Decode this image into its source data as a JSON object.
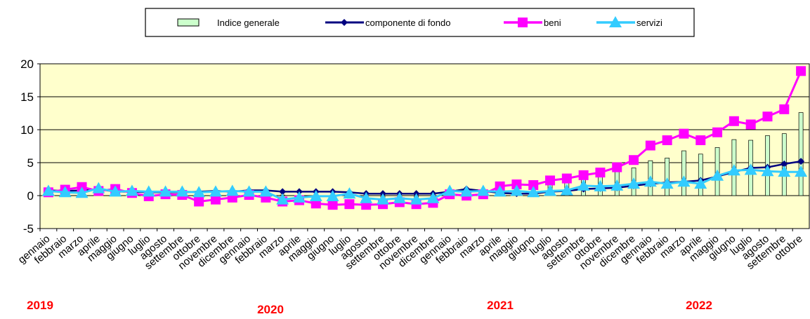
{
  "chart_data": {
    "type": "bar",
    "legend": {
      "placement": "top",
      "entries": [
        {
          "key": "indice",
          "label": "Indice generale"
        },
        {
          "key": "fondo",
          "label": "componente  di fondo"
        },
        {
          "key": "beni",
          "label": "beni"
        },
        {
          "key": "servizi",
          "label": "servizi"
        }
      ]
    },
    "colors": {
      "plot_bg": "#ffffcc",
      "bar_fill": "#ccffcc",
      "fondo": "#000080",
      "beni": "#ff00ff",
      "servizi": "#33ccff",
      "year_label": "#ff0000"
    },
    "ylim": [
      -5,
      20
    ],
    "yticks": [
      "-5",
      "0",
      "5",
      "10",
      "15",
      "20"
    ],
    "categories": [
      "gennaio",
      "febbraio",
      "marzo",
      "aprile",
      "maggio",
      "giugno",
      "luglio",
      "agosto",
      "settembre",
      "ottobre",
      "novembre",
      "dicembre",
      "gennaio",
      "febbraio",
      "marzo",
      "aprile",
      "maggio",
      "giugno",
      "luglio",
      "agosto",
      "settembre",
      "ottobre",
      "novembre",
      "dicembre",
      "gennaio",
      "febbraio",
      "marzo",
      "aprile",
      "maggio",
      "giugno",
      "luglio",
      "agosto",
      "settembre",
      "ottobre",
      "novembre",
      "dicembre",
      "gennaio",
      "febbraio",
      "marzo",
      "aprile",
      "maggio",
      "giugno",
      "luglio",
      "agosto",
      "settembre",
      "ottobre"
    ],
    "years": [
      {
        "label": "2019",
        "index": 0
      },
      {
        "label": "2020",
        "index": 12
      },
      {
        "label": "2021",
        "index": 24
      },
      {
        "label": "2022",
        "index": 36
      }
    ],
    "series": [
      {
        "key": "indice",
        "name": "Indice generale",
        "kind": "bar",
        "values": [
          0.9,
          1.1,
          1.1,
          1.1,
          0.9,
          0.8,
          0.5,
          0.5,
          0.3,
          0.4,
          0.5,
          0.6,
          0.6,
          0.3,
          0.1,
          0.0,
          -0.2,
          -0.2,
          -0.4,
          -0.5,
          -0.6,
          -0.3,
          -0.3,
          -0.2,
          0.7,
          0.6,
          0.6,
          1.1,
          1.3,
          1.3,
          1.9,
          2.1,
          2.9,
          3.2,
          3.6,
          4.2,
          5.3,
          5.7,
          6.8,
          6.3,
          7.3,
          8.5,
          8.4,
          9.1,
          9.4,
          12.6
        ]
      },
      {
        "key": "fondo",
        "name": "componente  di fondo",
        "kind": "line",
        "values": [
          0.8,
          0.7,
          0.8,
          1.0,
          0.6,
          0.6,
          0.5,
          0.5,
          0.5,
          0.6,
          0.7,
          0.6,
          0.8,
          0.8,
          0.6,
          0.6,
          0.6,
          0.6,
          0.5,
          0.3,
          0.3,
          0.3,
          0.3,
          0.3,
          0.6,
          1.0,
          0.7,
          0.4,
          0.3,
          0.3,
          0.6,
          0.7,
          1.0,
          1.1,
          1.2,
          1.5,
          1.8,
          2.0,
          2.1,
          2.3,
          2.9,
          3.6,
          4.2,
          4.3,
          4.8,
          5.2
        ]
      },
      {
        "key": "beni",
        "name": "beni",
        "kind": "line",
        "values": [
          0.5,
          0.9,
          1.3,
          0.7,
          1.0,
          0.4,
          -0.1,
          0.2,
          0.1,
          -0.9,
          -0.6,
          -0.3,
          0.1,
          -0.3,
          -0.9,
          -0.7,
          -1.2,
          -1.4,
          -1.3,
          -1.4,
          -1.3,
          -1.0,
          -1.3,
          -1.1,
          0.2,
          0.0,
          0.2,
          1.4,
          1.7,
          1.6,
          2.3,
          2.6,
          3.1,
          3.5,
          4.3,
          5.4,
          7.6,
          8.4,
          9.4,
          8.4,
          9.6,
          11.3,
          10.8,
          12.0,
          13.1,
          18.9
        ]
      },
      {
        "key": "servizi",
        "name": "servizi",
        "kind": "line",
        "values": [
          0.7,
          0.5,
          0.4,
          1.1,
          0.6,
          0.7,
          0.6,
          0.6,
          0.6,
          0.5,
          0.6,
          0.7,
          0.6,
          0.6,
          -0.6,
          -0.3,
          -0.1,
          -0.1,
          0.3,
          -0.4,
          -0.6,
          -0.4,
          -0.6,
          -0.4,
          0.7,
          0.6,
          0.7,
          0.6,
          0.7,
          0.5,
          0.7,
          0.8,
          1.5,
          1.4,
          1.5,
          1.8,
          2.1,
          1.8,
          2.1,
          1.8,
          3.0,
          3.8,
          3.9,
          3.7,
          3.6,
          3.6
        ]
      }
    ]
  }
}
